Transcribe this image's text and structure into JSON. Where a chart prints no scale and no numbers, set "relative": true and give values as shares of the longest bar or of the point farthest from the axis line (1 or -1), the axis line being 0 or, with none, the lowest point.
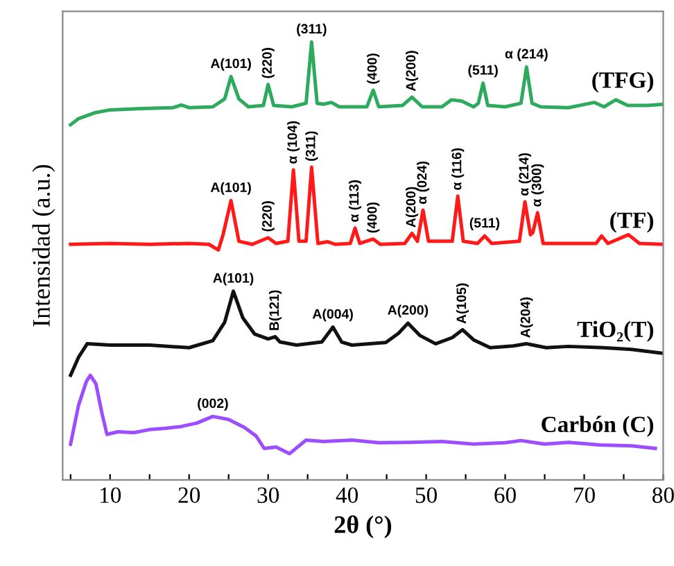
{
  "chart_data": {
    "type": "line",
    "relative": true,
    "xlabel": "2θ (°)",
    "ylabel": "Intensidad (a.u.)",
    "tick_labels": "x",
    "grid": false,
    "legend": false,
    "marker": "none",
    "line_style": "solid",
    "xlim": [
      4,
      80
    ],
    "xticks": [
      {
        "value": 5,
        "label": null
      },
      10,
      {
        "value": 15,
        "label": null
      },
      20,
      {
        "value": 25,
        "label": null
      },
      30,
      {
        "value": 35,
        "label": null
      },
      40,
      {
        "value": 45,
        "label": null
      },
      50,
      {
        "value": 55,
        "label": null
      },
      60,
      {
        "value": 65,
        "label": null
      },
      70,
      {
        "value": 75,
        "label": null
      },
      80
    ],
    "series": [
      {
        "name": "(TFG)",
        "color": "#2eaa5e",
        "x": [
          5,
          6,
          8,
          10,
          14,
          18,
          19,
          20,
          23,
          24.5,
          25.3,
          26.3,
          27.5,
          29.4,
          30.0,
          30.7,
          33,
          34.8,
          35.5,
          36.2,
          37,
          38,
          39,
          42.5,
          43.3,
          44,
          47,
          48.2,
          49.5,
          52,
          53.2,
          54.5,
          56,
          56.6,
          57.2,
          57.8,
          60,
          62,
          62.7,
          63.4,
          64.5,
          68,
          71.3,
          72.5,
          74,
          75.5,
          78,
          80
        ],
        "values": [
          0.811,
          0.825,
          0.838,
          0.845,
          0.848,
          0.85,
          0.856,
          0.85,
          0.852,
          0.87,
          0.921,
          0.87,
          0.852,
          0.855,
          0.903,
          0.855,
          0.852,
          0.86,
          1.0,
          0.86,
          0.858,
          0.862,
          0.852,
          0.852,
          0.89,
          0.852,
          0.855,
          0.874,
          0.852,
          0.852,
          0.868,
          0.865,
          0.852,
          0.86,
          0.906,
          0.855,
          0.852,
          0.86,
          0.943,
          0.86,
          0.852,
          0.85,
          0.862,
          0.852,
          0.868,
          0.855,
          0.855,
          0.858
        ]
      },
      {
        "name": "(TF)",
        "color": "#ff1a1a",
        "x": [
          5,
          10,
          15,
          20,
          22.5,
          23.7,
          24.3,
          25.3,
          26.3,
          28,
          30.0,
          31,
          32.5,
          33.2,
          33.9,
          34.8,
          35.5,
          36.3,
          37.5,
          38.5,
          40.4,
          41.0,
          41.6,
          43.3,
          44.2,
          47.3,
          48.2,
          48.9,
          49.6,
          50.3,
          53.3,
          54.0,
          54.7,
          56.5,
          57.4,
          58.3,
          61.8,
          62.5,
          63.2,
          63.5,
          64.1,
          64.8,
          71.5,
          72.2,
          73,
          75.6,
          77,
          80
        ],
        "values": [
          0.538,
          0.54,
          0.538,
          0.54,
          0.538,
          0.525,
          0.56,
          0.638,
          0.545,
          0.538,
          0.553,
          0.54,
          0.545,
          0.708,
          0.545,
          0.545,
          0.714,
          0.54,
          0.544,
          0.538,
          0.54,
          0.575,
          0.54,
          0.55,
          0.538,
          0.54,
          0.563,
          0.545,
          0.616,
          0.545,
          0.545,
          0.648,
          0.545,
          0.54,
          0.557,
          0.54,
          0.545,
          0.635,
          0.56,
          0.565,
          0.61,
          0.54,
          0.54,
          0.557,
          0.54,
          0.56,
          0.54,
          0.538
        ]
      },
      {
        "name": "TiO₂(T)",
        "color": "#111111",
        "x": [
          5,
          6,
          7.1,
          10,
          15,
          20,
          23.0,
          24.5,
          25.6,
          26.8,
          28.3,
          30.0,
          30.9,
          31.5,
          33.6,
          36.8,
          38.2,
          39.3,
          40.6,
          44.9,
          46.5,
          47.7,
          49.2,
          51.2,
          53.3,
          54.6,
          56,
          58.1,
          61,
          62.7,
          65.2,
          68,
          72.4,
          76,
          80
        ],
        "values": [
          0.239,
          0.28,
          0.311,
          0.308,
          0.308,
          0.302,
          0.318,
          0.36,
          0.431,
          0.37,
          0.333,
          0.322,
          0.327,
          0.315,
          0.308,
          0.315,
          0.349,
          0.315,
          0.308,
          0.314,
          0.335,
          0.358,
          0.33,
          0.311,
          0.325,
          0.343,
          0.32,
          0.302,
          0.306,
          0.311,
          0.302,
          0.305,
          0.302,
          0.298,
          0.289
        ]
      },
      {
        "name": "Carbón (C)",
        "color": "#9b4dff",
        "x": [
          5,
          6,
          7,
          7.5,
          8.2,
          9.0,
          9.6,
          11,
          13,
          15,
          17,
          19,
          21,
          23.0,
          25,
          27,
          28.5,
          29.5,
          31,
          32.7,
          34.8,
          37,
          40.6,
          44,
          48,
          52,
          56,
          60,
          62,
          65,
          68,
          72,
          76,
          79
        ],
        "values": [
          0.082,
          0.17,
          0.225,
          0.239,
          0.22,
          0.15,
          0.104,
          0.11,
          0.108,
          0.115,
          0.118,
          0.122,
          0.13,
          0.145,
          0.138,
          0.12,
          0.1,
          0.072,
          0.075,
          0.06,
          0.091,
          0.088,
          0.091,
          0.085,
          0.086,
          0.088,
          0.082,
          0.085,
          0.09,
          0.082,
          0.086,
          0.08,
          0.078,
          0.072
        ]
      }
    ],
    "annotations": [
      {
        "text": "A(101)",
        "x": 25.3,
        "y": 0.921
      },
      {
        "text": "(220)",
        "x": 30.0,
        "y": 0.903
      },
      {
        "text": "(311)",
        "x": 35.5,
        "y": 1.0
      },
      {
        "text": "(400)",
        "x": 43.3,
        "y": 0.89
      },
      {
        "text": "A(200)",
        "x": 48.2,
        "y": 0.874
      },
      {
        "text": "(511)",
        "x": 57.2,
        "y": 0.906
      },
      {
        "text": "α (214)",
        "x": 62.7,
        "y": 0.943
      },
      {
        "text": "A(101)",
        "x": 25.3,
        "y": 0.638
      },
      {
        "text": "(220)",
        "x": 30.0,
        "y": 0.553
      },
      {
        "text": "α (104)",
        "x": 33.2,
        "y": 0.708
      },
      {
        "text": "(311)",
        "x": 35.5,
        "y": 0.714
      },
      {
        "text": "α (113)",
        "x": 41.0,
        "y": 0.575
      },
      {
        "text": "(400)",
        "x": 43.3,
        "y": 0.55
      },
      {
        "text": "A(200)",
        "x": 48.2,
        "y": 0.563
      },
      {
        "text": "α (024)",
        "x": 49.6,
        "y": 0.616
      },
      {
        "text": "α (116)",
        "x": 54.0,
        "y": 0.648
      },
      {
        "text": "(511)",
        "x": 57.4,
        "y": 0.557
      },
      {
        "text": "α (214)",
        "x": 62.5,
        "y": 0.635
      },
      {
        "text": "α (300)",
        "x": 64.1,
        "y": 0.61
      },
      {
        "text": "A(101)",
        "x": 25.6,
        "y": 0.431
      },
      {
        "text": "B(121)",
        "x": 30.9,
        "y": 0.327
      },
      {
        "text": "A(004)",
        "x": 38.2,
        "y": 0.349
      },
      {
        "text": "A(200)",
        "x": 47.7,
        "y": 0.358
      },
      {
        "text": "A(105)",
        "x": 54.6,
        "y": 0.343
      },
      {
        "text": "A(204)",
        "x": 62.7,
        "y": 0.311
      },
      {
        "text": "(002)",
        "x": 23.0,
        "y": 0.145
      }
    ]
  }
}
